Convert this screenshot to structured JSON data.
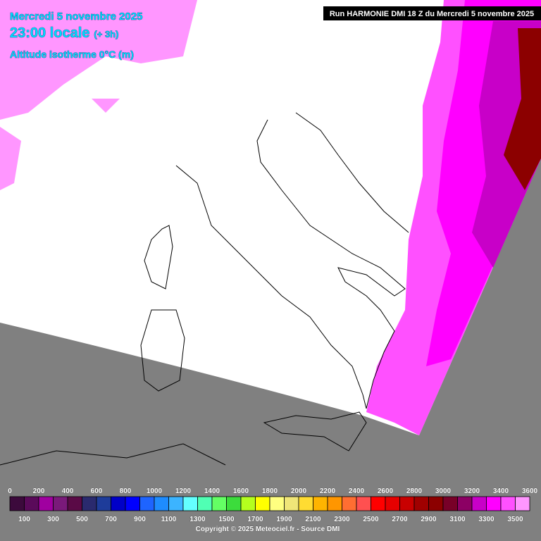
{
  "header": {
    "date": "Mercredi 5 novembre 2025",
    "time": "23:00 locale",
    "offset": "(+ 3h)",
    "parameter": "Altitude isotherme 0°C (m)",
    "run": "Run HARMONIE DMI 18 Z du Mercredi 5 novembre 2025"
  },
  "legend": {
    "top_labels": [
      0,
      200,
      400,
      600,
      800,
      1000,
      1200,
      1400,
      1600,
      1800,
      2000,
      2200,
      2400,
      2600,
      2800,
      3000,
      3200,
      3400,
      3600
    ],
    "bottom_labels": [
      100,
      300,
      500,
      700,
      900,
      1100,
      1300,
      1500,
      1700,
      1900,
      2100,
      2300,
      2500,
      2700,
      2900,
      3100,
      3300,
      3500
    ],
    "colors": [
      "#3c0a3c",
      "#5a0a5a",
      "#a000a0",
      "#7a1a7a",
      "#5a0a46",
      "#2a2a6e",
      "#1e3c9a",
      "#0000c8",
      "#0000ff",
      "#1e64ff",
      "#1e8cff",
      "#3cb4ff",
      "#64ffff",
      "#50ffb4",
      "#64ff64",
      "#3cdc3c",
      "#b4ff1e",
      "#ffff00",
      "#ffff80",
      "#f0e678",
      "#ffdc32",
      "#ffb400",
      "#ff9600",
      "#ff6e32",
      "#ff5050",
      "#ff0000",
      "#e60000",
      "#c80000",
      "#a00000",
      "#8c0000",
      "#780028",
      "#8c0064",
      "#c800c8",
      "#ff00ff",
      "#ff50ff",
      "#ff96ff"
    ]
  },
  "footer": {
    "copyright": "Copyright © 2025 Meteociel.fr - Source DMI"
  }
}
